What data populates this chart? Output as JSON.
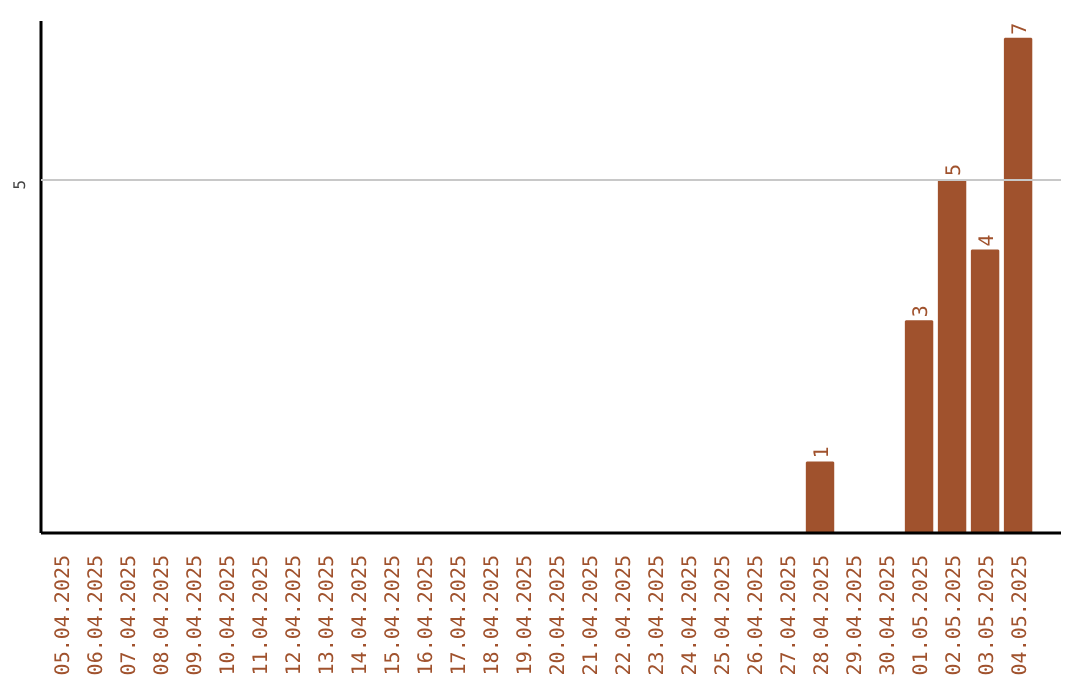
{
  "chart_data": {
    "type": "bar",
    "categories": [
      "05.04.2025",
      "06.04.2025",
      "07.04.2025",
      "08.04.2025",
      "09.04.2025",
      "10.04.2025",
      "11.04.2025",
      "12.04.2025",
      "13.04.2025",
      "14.04.2025",
      "15.04.2025",
      "16.04.2025",
      "17.04.2025",
      "18.04.2025",
      "19.04.2025",
      "20.04.2025",
      "21.04.2025",
      "22.04.2025",
      "23.04.2025",
      "24.04.2025",
      "25.04.2025",
      "26.04.2025",
      "27.04.2025",
      "28.04.2025",
      "29.04.2025",
      "30.04.2025",
      "01.05.2025",
      "02.05.2025",
      "03.05.2025",
      "04.05.2025"
    ],
    "values": [
      null,
      null,
      null,
      null,
      null,
      null,
      null,
      null,
      null,
      null,
      null,
      null,
      null,
      null,
      null,
      null,
      null,
      null,
      null,
      null,
      null,
      null,
      null,
      1,
      null,
      null,
      3,
      5,
      4,
      7
    ],
    "value_labels": [
      null,
      null,
      null,
      null,
      null,
      null,
      null,
      null,
      null,
      null,
      null,
      null,
      null,
      null,
      null,
      null,
      null,
      null,
      null,
      null,
      null,
      null,
      null,
      "1",
      null,
      null,
      "3",
      "5",
      "4",
      "7"
    ],
    "color": "#a0522d",
    "ylim": [
      0,
      7.25
    ],
    "ref_lines": [
      {
        "axis": "y",
        "value": 5,
        "label": "5",
        "color": "#c8c8c8"
      }
    ]
  }
}
